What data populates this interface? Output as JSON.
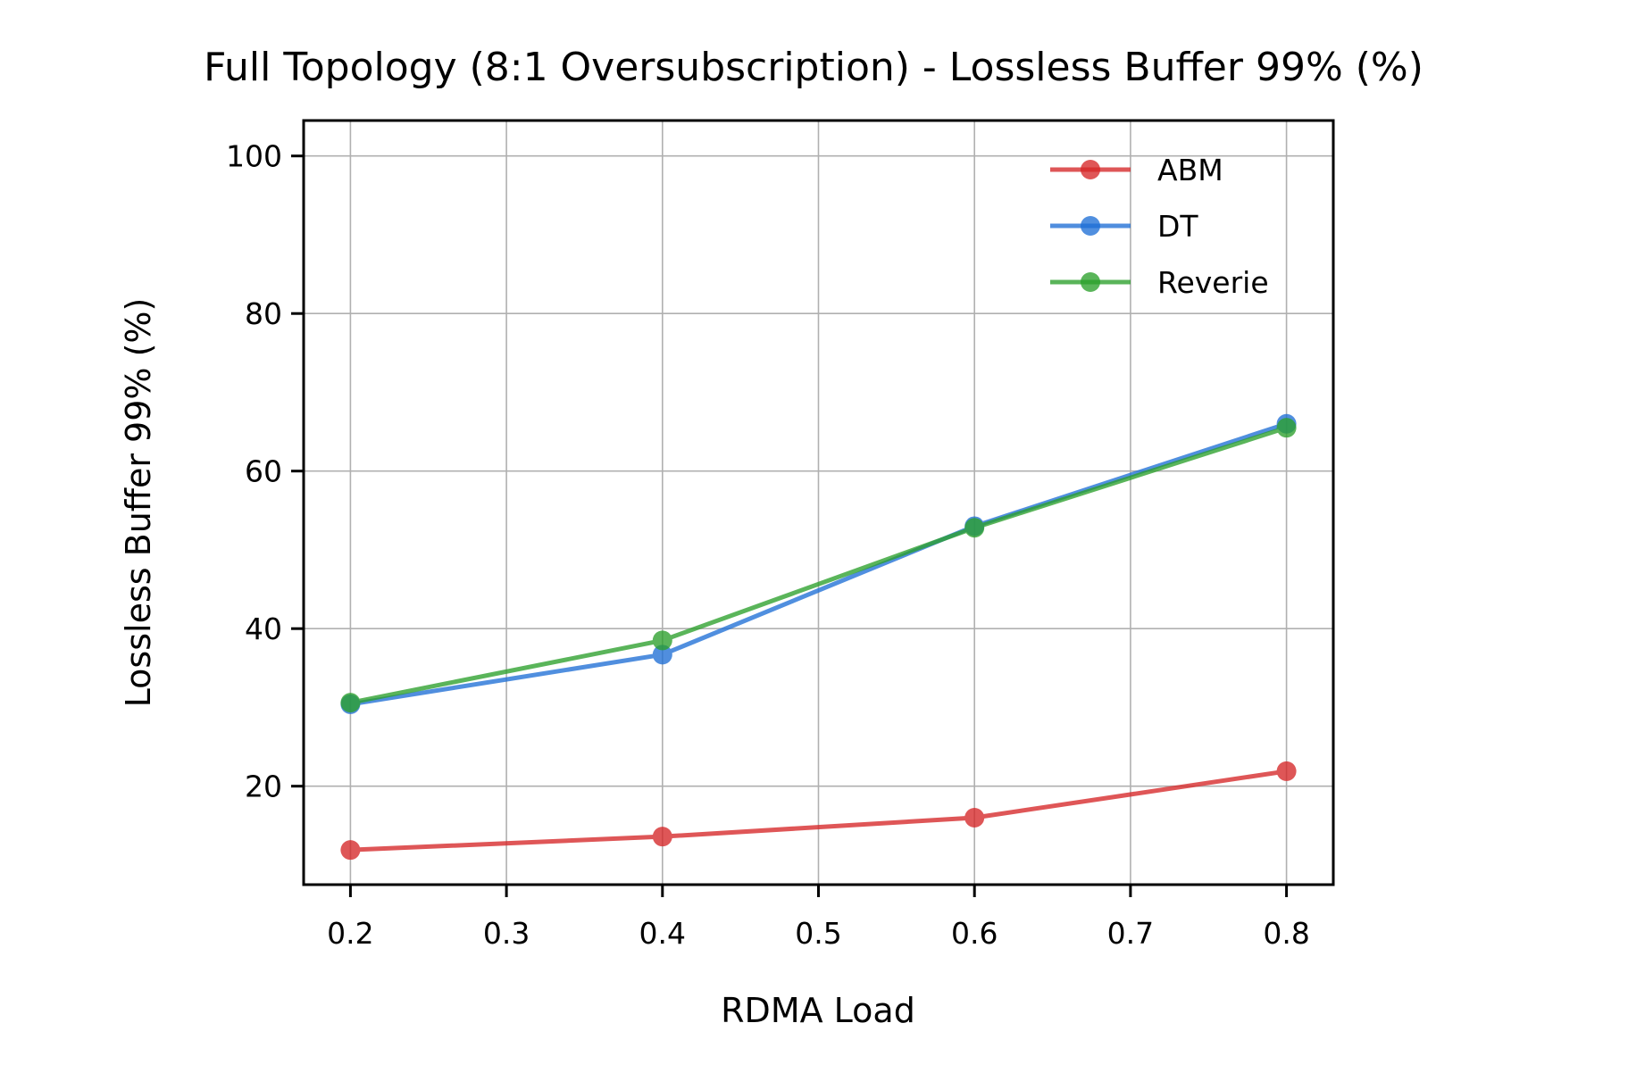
{
  "chart_data": {
    "type": "line",
    "title": "Full Topology (8:1 Oversubscription) - Lossless Buffer 99% (%)",
    "xlabel": "RDMA Load",
    "ylabel": "Lossless Buffer 99% (%)",
    "x": [
      0.2,
      0.4,
      0.6,
      0.8
    ],
    "xlim": [
      0.17,
      0.83
    ],
    "ylim": [
      7.5,
      104.5
    ],
    "xticks": [
      "0.2",
      "0.3",
      "0.4",
      "0.5",
      "0.6",
      "0.7",
      "0.8"
    ],
    "yticks": [
      "20",
      "40",
      "60",
      "80",
      "100"
    ],
    "grid": true,
    "legend_position": "top-right",
    "series": [
      {
        "name": "ABM",
        "color": "#d62728",
        "values": [
          11.9,
          13.6,
          16.0,
          21.9
        ]
      },
      {
        "name": "DT",
        "color": "#1f6fd6",
        "values": [
          30.4,
          36.7,
          53.0,
          66.0
        ]
      },
      {
        "name": "Reverie",
        "color": "#2ca02c",
        "values": [
          30.6,
          38.5,
          52.8,
          65.5
        ]
      }
    ]
  }
}
